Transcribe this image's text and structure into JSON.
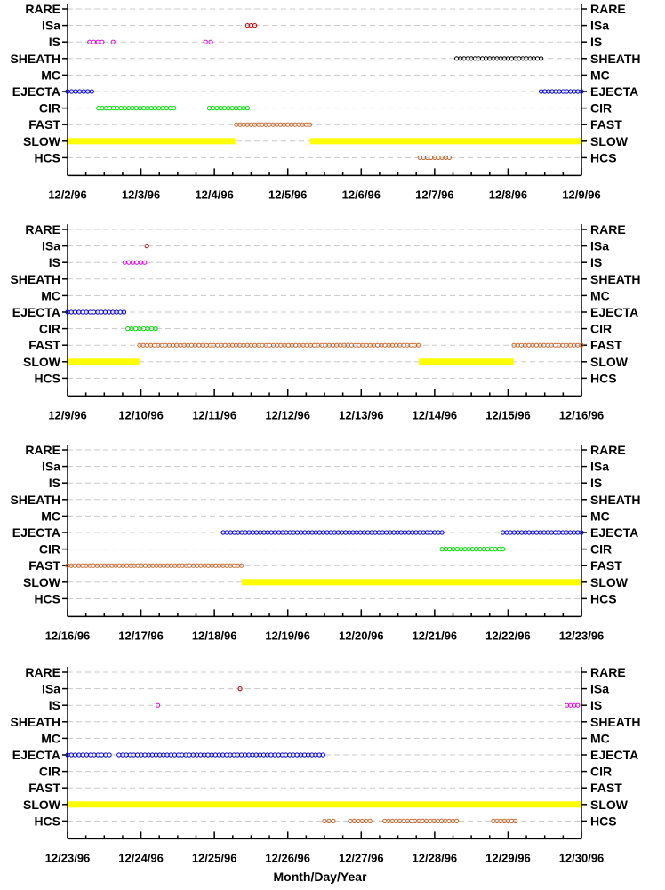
{
  "chart_data": {
    "type": "scatter",
    "xlabel": "Month/Day/Year",
    "categories": [
      "RARE",
      "ISa",
      "IS",
      "SHEATH",
      "MC",
      "EJECTA",
      "CIR",
      "FAST",
      "SLOW",
      "HCS"
    ],
    "colors": {
      "ISa": "#c00000",
      "IS": "#e000e0",
      "SHEATH": "#000000",
      "EJECTA": "#0000cc",
      "CIR": "#00e000",
      "FAST": "#c86428",
      "SLOW": "#ffff00",
      "HCS": "#c86428"
    },
    "panels": [
      {
        "ticks": [
          "12/2/96",
          "12/3/96",
          "12/4/96",
          "12/5/96",
          "12/6/96",
          "12/7/96",
          "12/8/96",
          "12/9/96"
        ],
        "xlim": [
          0,
          7
        ],
        "intervals": [
          {
            "category": "ISa",
            "start": 2.45,
            "end": 2.55,
            "style": "dots"
          },
          {
            "category": "IS",
            "start": 0.3,
            "end": 0.47,
            "style": "dots"
          },
          {
            "category": "IS",
            "start": 0.62,
            "end": 0.62,
            "style": "dots"
          },
          {
            "category": "IS",
            "start": 1.88,
            "end": 1.95,
            "style": "dots"
          },
          {
            "category": "SHEATH",
            "start": 5.3,
            "end": 6.45,
            "style": "dots"
          },
          {
            "category": "EJECTA",
            "start": 0.0,
            "end": 0.33,
            "style": "dots"
          },
          {
            "category": "EJECTA",
            "start": 6.45,
            "end": 7.0,
            "style": "dots"
          },
          {
            "category": "CIR",
            "start": 0.42,
            "end": 1.45,
            "style": "dots"
          },
          {
            "category": "CIR",
            "start": 1.93,
            "end": 2.45,
            "style": "dots"
          },
          {
            "category": "FAST",
            "start": 2.3,
            "end": 3.3,
            "style": "dots"
          },
          {
            "category": "SLOW",
            "start": 0.0,
            "end": 2.28,
            "style": "bar"
          },
          {
            "category": "SLOW",
            "start": 3.3,
            "end": 7.0,
            "style": "bar"
          },
          {
            "category": "HCS",
            "start": 4.8,
            "end": 5.2,
            "style": "dots"
          }
        ]
      },
      {
        "ticks": [
          "12/9/96",
          "12/10/96",
          "12/11/96",
          "12/12/96",
          "12/13/96",
          "12/14/96",
          "12/15/96",
          "12/16/96"
        ],
        "xlim": [
          0,
          7
        ],
        "intervals": [
          {
            "category": "ISa",
            "start": 1.08,
            "end": 1.08,
            "style": "dots"
          },
          {
            "category": "IS",
            "start": 0.78,
            "end": 1.05,
            "style": "dots"
          },
          {
            "category": "EJECTA",
            "start": 0.0,
            "end": 0.77,
            "style": "dots"
          },
          {
            "category": "CIR",
            "start": 0.82,
            "end": 1.2,
            "style": "dots"
          },
          {
            "category": "FAST",
            "start": 0.98,
            "end": 4.78,
            "style": "dots"
          },
          {
            "category": "FAST",
            "start": 6.08,
            "end": 7.0,
            "style": "dots"
          },
          {
            "category": "SLOW",
            "start": 0.0,
            "end": 0.98,
            "style": "bar"
          },
          {
            "category": "SLOW",
            "start": 4.78,
            "end": 6.08,
            "style": "bar"
          }
        ]
      },
      {
        "ticks": [
          "12/16/96",
          "12/17/96",
          "12/18/96",
          "12/19/96",
          "12/20/96",
          "12/21/96",
          "12/22/96",
          "12/23/96"
        ],
        "xlim": [
          0,
          7
        ],
        "intervals": [
          {
            "category": "EJECTA",
            "start": 2.12,
            "end": 5.1,
            "style": "dots"
          },
          {
            "category": "EJECTA",
            "start": 5.93,
            "end": 7.0,
            "style": "dots"
          },
          {
            "category": "CIR",
            "start": 5.1,
            "end": 5.93,
            "style": "dots"
          },
          {
            "category": "FAST",
            "start": 0.0,
            "end": 2.37,
            "style": "dots"
          },
          {
            "category": "SLOW",
            "start": 2.37,
            "end": 7.0,
            "style": "bar"
          }
        ]
      },
      {
        "ticks": [
          "12/23/96",
          "12/24/96",
          "12/25/96",
          "12/26/96",
          "12/27/96",
          "12/28/96",
          "12/29/96",
          "12/30/96"
        ],
        "xlim": [
          0,
          7
        ],
        "intervals": [
          {
            "category": "ISa",
            "start": 2.35,
            "end": 2.35,
            "style": "dots"
          },
          {
            "category": "IS",
            "start": 1.23,
            "end": 1.23,
            "style": "dots"
          },
          {
            "category": "IS",
            "start": 6.8,
            "end": 6.95,
            "style": "dots"
          },
          {
            "category": "EJECTA",
            "start": 0.0,
            "end": 0.57,
            "style": "dots"
          },
          {
            "category": "EJECTA",
            "start": 0.7,
            "end": 3.48,
            "style": "dots"
          },
          {
            "category": "SLOW",
            "start": 0.0,
            "end": 7.0,
            "style": "bar"
          },
          {
            "category": "HCS",
            "start": 3.5,
            "end": 3.62,
            "style": "dots"
          },
          {
            "category": "HCS",
            "start": 3.85,
            "end": 4.12,
            "style": "dots"
          },
          {
            "category": "HCS",
            "start": 4.32,
            "end": 5.3,
            "style": "dots"
          },
          {
            "category": "HCS",
            "start": 5.8,
            "end": 6.1,
            "style": "dots"
          }
        ]
      }
    ]
  }
}
